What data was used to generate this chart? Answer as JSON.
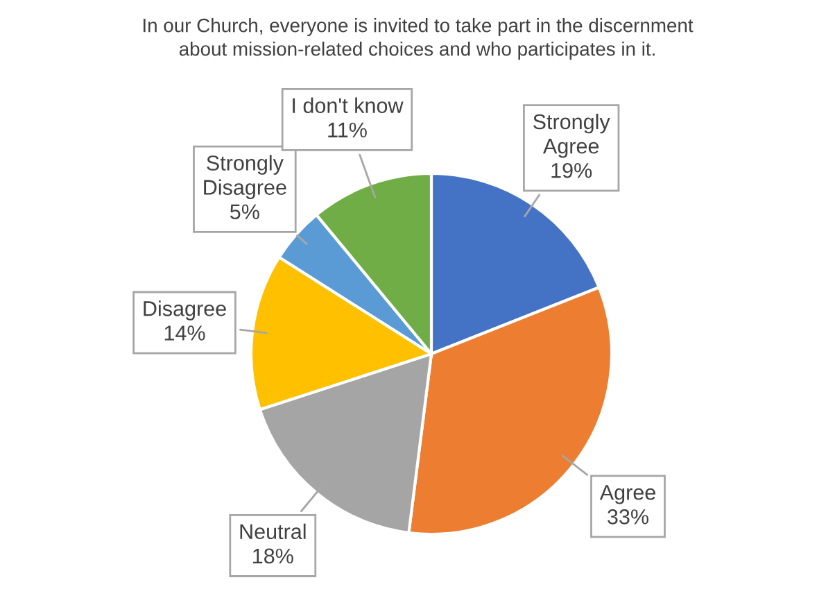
{
  "chart_data": {
    "type": "pie",
    "title": "In our Church, everyone is invited to take part in the discernment\nabout mission-related choices and who participates in it.",
    "categories": [
      "Strongly\nAgree",
      "Agree",
      "Neutral",
      "Disagree",
      "Strongly\nDisagree",
      "I don't know"
    ],
    "values": [
      19,
      33,
      18,
      14,
      5,
      11
    ],
    "colors": [
      "#4472c4",
      "#ed7d31",
      "#a5a5a5",
      "#ffc000",
      "#5b9bd5",
      "#70ad47"
    ],
    "value_labels": [
      "19%",
      "33%",
      "18%",
      "14%",
      "5%",
      "11%"
    ],
    "legend": false
  }
}
